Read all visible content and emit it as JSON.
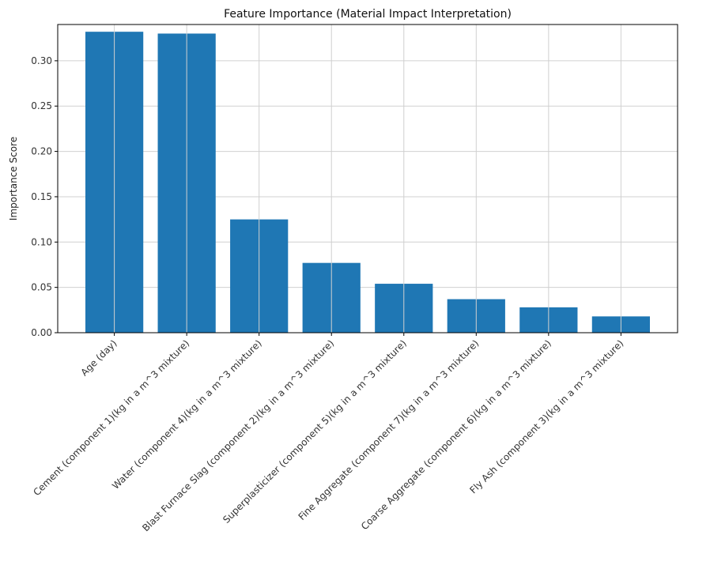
{
  "chart_data": {
    "type": "bar",
    "title": "Feature Importance (Material Impact Interpretation)",
    "xlabel": "",
    "ylabel": "Importance Score",
    "ylim": [
      0,
      0.34
    ],
    "yticks": [
      "0.00",
      "0.05",
      "0.10",
      "0.15",
      "0.20",
      "0.25",
      "0.30"
    ],
    "grid": true,
    "bar_color": "#1f77b4",
    "categories": [
      "Age (day)",
      "Cement (component 1)(kg in a m^3 mixture)",
      "Water  (component 4)(kg in a m^3 mixture)",
      "Blast Furnace Slag (component 2)(kg in a m^3 mixture)",
      "Superplasticizer (component 5)(kg in a m^3 mixture)",
      "Fine Aggregate (component 7)(kg in a m^3 mixture)",
      "Coarse Aggregate  (component 6)(kg in a m^3 mixture)",
      "Fly Ash (component 3)(kg in a m^3 mixture)"
    ],
    "values": [
      0.332,
      0.33,
      0.125,
      0.077,
      0.054,
      0.037,
      0.028,
      0.018
    ]
  }
}
